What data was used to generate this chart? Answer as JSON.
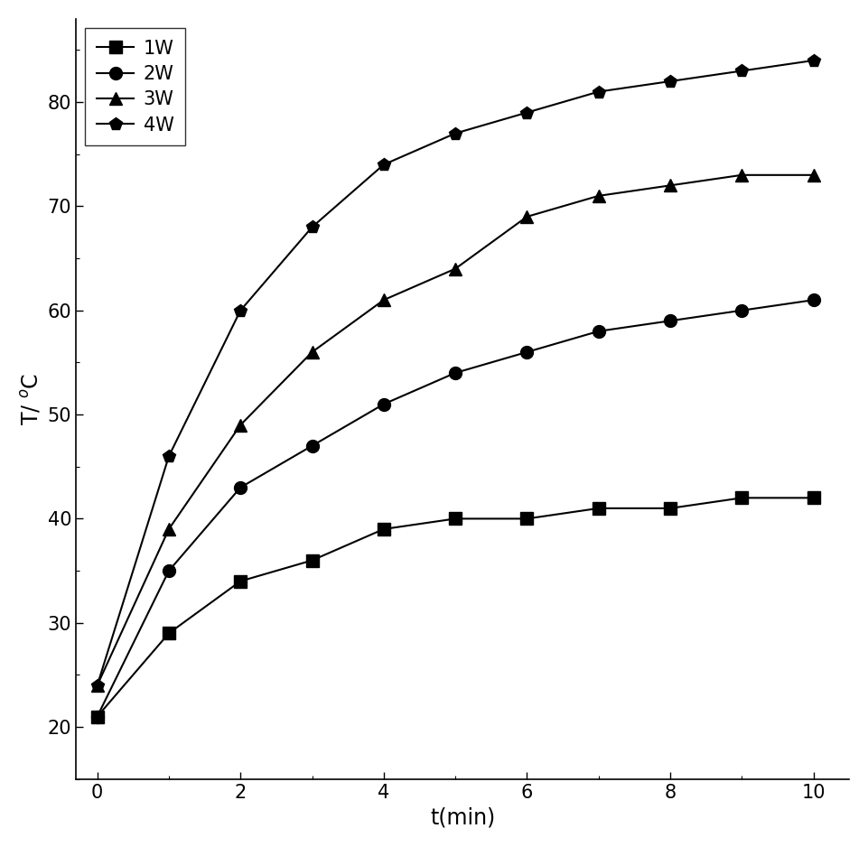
{
  "t": [
    0,
    1,
    2,
    3,
    4,
    5,
    6,
    7,
    8,
    9,
    10
  ],
  "series": {
    "1W": {
      "label": "1W",
      "marker": "s",
      "values": [
        21,
        29,
        34,
        36,
        39,
        40,
        40,
        41,
        41,
        42,
        42
      ]
    },
    "2W": {
      "label": "2W",
      "marker": "o",
      "values": [
        21,
        35,
        43,
        47,
        51,
        54,
        56,
        58,
        59,
        60,
        61
      ]
    },
    "3W": {
      "label": "3W",
      "marker": "^",
      "values": [
        24,
        39,
        49,
        56,
        61,
        64,
        69,
        71,
        72,
        73,
        73
      ]
    },
    "4W": {
      "label": "4W",
      "marker": "p",
      "values": [
        24,
        46,
        60,
        68,
        74,
        77,
        79,
        81,
        82,
        83,
        84
      ]
    }
  },
  "xlabel": "t(min)",
  "ylabel": "T/ $^o$C",
  "xlim": [
    -0.3,
    10.5
  ],
  "ylim": [
    15,
    88
  ],
  "xticks": [
    0,
    2,
    4,
    6,
    8,
    10
  ],
  "yticks": [
    20,
    30,
    40,
    50,
    60,
    70,
    80
  ],
  "line_color": "#000000",
  "marker_color": "#000000",
  "markersize": 10,
  "linewidth": 1.5,
  "legend_fontsize": 15,
  "axis_fontsize": 17,
  "tick_fontsize": 15,
  "figure_width": 9.61,
  "figure_height": 9.38,
  "dpi": 100
}
